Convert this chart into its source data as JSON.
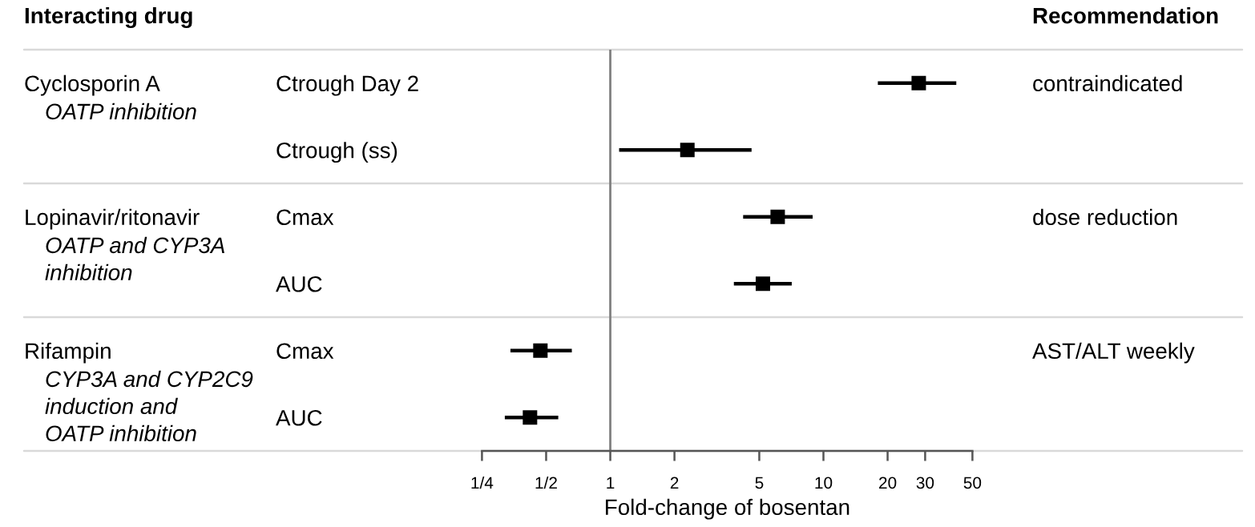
{
  "chart_data": {
    "type": "scatter",
    "orientation": "horizontal",
    "categories": [
      "Ctrough Day 2",
      "Ctrough (ss)",
      "Cmax",
      "AUC",
      "Cmax",
      "AUC"
    ],
    "series": [
      {
        "color": "#000000",
        "values": [
          28,
          2.3,
          6.1,
          5.2,
          0.47,
          0.42
        ],
        "errors": [
          [
            18,
            42
          ],
          [
            1.1,
            4.6
          ],
          [
            4.2,
            8.9
          ],
          [
            3.8,
            7.1
          ],
          [
            0.34,
            0.66
          ],
          [
            0.32,
            0.57
          ]
        ]
      }
    ],
    "log": "x",
    "xlim": [
      0.25,
      50
    ],
    "xticks": [
      {
        "value": 0.25,
        "label": "1/4"
      },
      {
        "value": 0.5,
        "label": "1/2"
      },
      1,
      2,
      5,
      10,
      20,
      30,
      50
    ],
    "xlabel": "Fold-change of bosentan",
    "marker": "square",
    "ref_lines": [
      {
        "axis": "x",
        "value": 1,
        "color": "#808080"
      }
    ],
    "annotations": [
      "Interacting drug",
      "Recommendation",
      "Cyclosporin A",
      "OATP inhibition",
      "contraindicated",
      "Lopinavir/ritonavir",
      "OATP and CYP3A\ninhibition",
      "dose reduction",
      "Rifampin",
      "CYP3A and CYP2C9\ninduction and\nOATP inhibition",
      "AST/ALT weekly"
    ]
  }
}
